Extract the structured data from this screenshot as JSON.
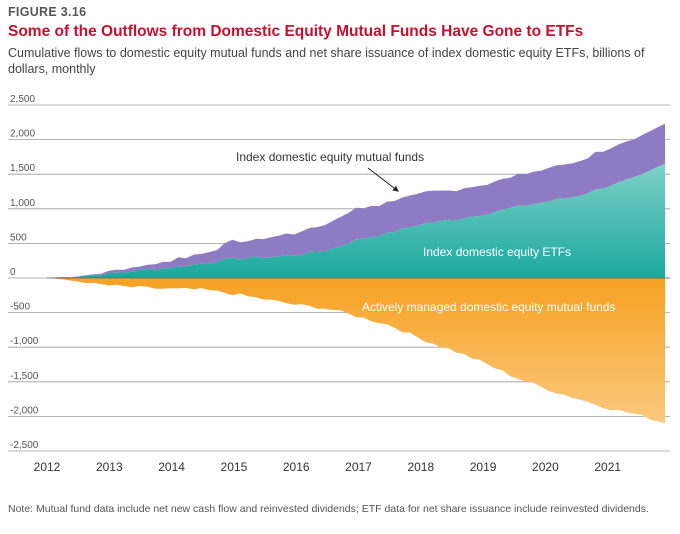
{
  "figure_label": "FIGURE 3.16",
  "title": "Some of the Outflows from Domestic Equity Mutual Funds Have Gone to ETFs",
  "subtitle": "Cumulative flows to domestic equity mutual funds and net share issuance of index domestic equity ETFs, billions of dollars, monthly",
  "note": "Note: Mutual fund data include net new cash flow and reinvested dividends; ETF data for net share issuance include reinvested dividends.",
  "colors": {
    "index_mutual_funds": "#8f7ac4",
    "etf_top": "#7fd1c8",
    "etf_bottom": "#1aa89e",
    "active_top": "#f6a122",
    "active_bottom": "#fbc97e",
    "arrow": "#222222",
    "grid": "#9e9e9e"
  },
  "chart_data": {
    "type": "area",
    "title": "Some of the Outflows from Domestic Equity Mutual Funds Have Gone to ETFs",
    "xlabel": "",
    "ylabel": "",
    "ylim": [
      -2500,
      2500
    ],
    "xlim": [
      2012,
      2022
    ],
    "yticks": [
      "2,500",
      "2,000",
      "1,500",
      "1,000",
      "500",
      "0",
      "-500",
      "-1,000",
      "-1,500",
      "-2,000",
      "-2,500"
    ],
    "ytick_values": [
      2500,
      2000,
      1500,
      1000,
      500,
      0,
      -500,
      -1000,
      -1500,
      -2000,
      -2500
    ],
    "xticks": [
      "2012",
      "2013",
      "2014",
      "2015",
      "2016",
      "2017",
      "2018",
      "2019",
      "2020",
      "2021"
    ],
    "xtick_values": [
      2012,
      2013,
      2014,
      2015,
      2016,
      2017,
      2018,
      2019,
      2020,
      2021
    ],
    "grid": true,
    "stacked": true,
    "x": [
      2012.0,
      2012.5,
      2013.0,
      2013.5,
      2014.0,
      2014.5,
      2015.0,
      2015.5,
      2016.0,
      2016.5,
      2017.0,
      2017.5,
      2018.0,
      2018.5,
      2019.0,
      2019.5,
      2020.0,
      2020.5,
      2021.0,
      2021.5,
      2021.92
    ],
    "series": [
      {
        "name": "Index domestic equity ETFs",
        "values": [
          0,
          20,
          60,
          110,
          150,
          210,
          280,
          300,
          330,
          400,
          560,
          650,
          780,
          840,
          920,
          1020,
          1100,
          1180,
          1330,
          1460,
          1650
        ]
      },
      {
        "name": "Index domestic equity mutual funds",
        "values": [
          0,
          10,
          30,
          60,
          110,
          140,
          250,
          270,
          320,
          400,
          450,
          450,
          470,
          430,
          440,
          450,
          470,
          500,
          550,
          560,
          580
        ]
      },
      {
        "name": "Actively managed domestic equity mutual funds",
        "values": [
          0,
          -50,
          -110,
          -140,
          -160,
          -170,
          -230,
          -310,
          -390,
          -440,
          -560,
          -680,
          -880,
          -1040,
          -1220,
          -1430,
          -1600,
          -1740,
          -1880,
          -1980,
          -2100
        ]
      }
    ],
    "annotations": [
      {
        "text": "Index domestic equity mutual funds",
        "arrow": true
      },
      {
        "text": "Index domestic equity ETFs"
      },
      {
        "text": "Actively managed domestic equity mutual funds"
      }
    ]
  }
}
